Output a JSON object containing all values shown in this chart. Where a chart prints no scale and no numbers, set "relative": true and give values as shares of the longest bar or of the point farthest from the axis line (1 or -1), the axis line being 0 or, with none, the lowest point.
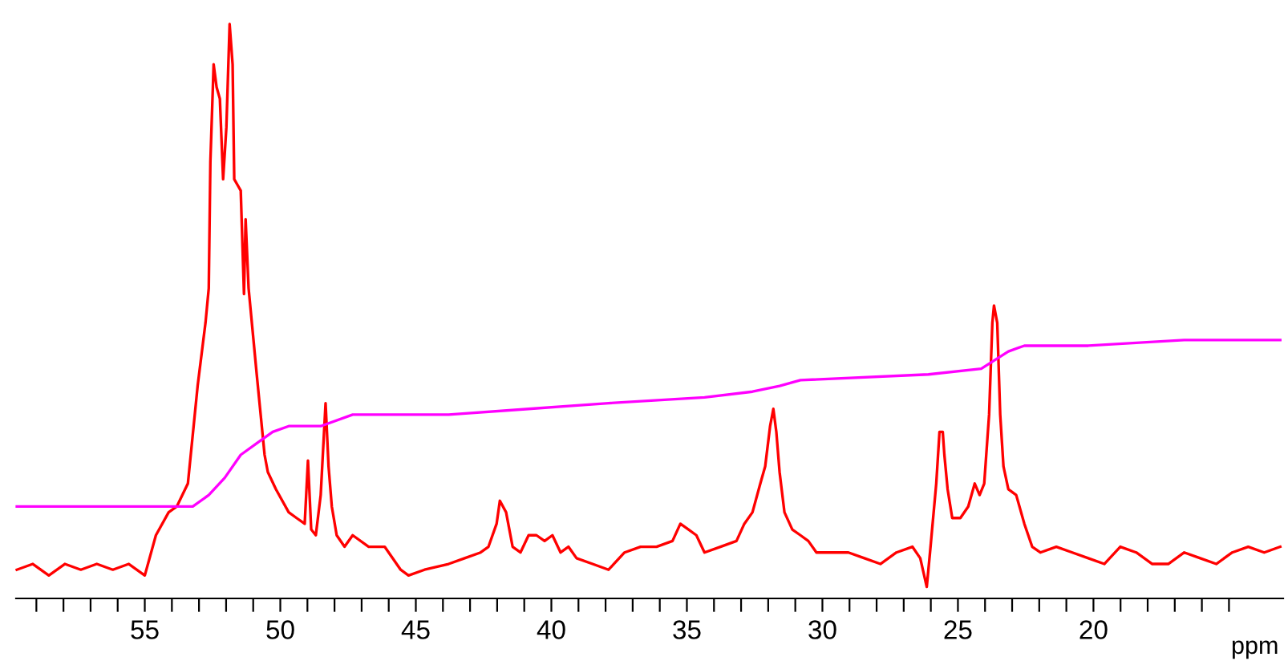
{
  "chart_data": {
    "type": "line",
    "xlabel": "ppm",
    "relative": true,
    "grid": false,
    "marker": "none",
    "line_style": "solid",
    "xlim": [
      59.75,
      13.0
    ],
    "xticks": [
      {
        "value": 59,
        "label": null
      },
      {
        "value": 58,
        "label": null
      },
      {
        "value": 57,
        "label": null
      },
      {
        "value": 56,
        "label": null
      },
      55,
      {
        "value": 54,
        "label": null
      },
      {
        "value": 53,
        "label": null
      },
      {
        "value": 52,
        "label": null
      },
      {
        "value": 51,
        "label": null
      },
      50,
      {
        "value": 49,
        "label": null
      },
      {
        "value": 48,
        "label": null
      },
      {
        "value": 47,
        "label": null
      },
      {
        "value": 46,
        "label": null
      },
      45,
      {
        "value": 44,
        "label": null
      },
      {
        "value": 43,
        "label": null
      },
      {
        "value": 42,
        "label": null
      },
      {
        "value": 41,
        "label": null
      },
      40,
      {
        "value": 39,
        "label": null
      },
      {
        "value": 38,
        "label": null
      },
      {
        "value": 37,
        "label": null
      },
      {
        "value": 36,
        "label": null
      },
      35,
      {
        "value": 34,
        "label": null
      },
      {
        "value": 33,
        "label": null
      },
      {
        "value": 32,
        "label": null
      },
      {
        "value": 31,
        "label": null
      },
      30,
      {
        "value": 29,
        "label": null
      },
      {
        "value": 28,
        "label": null
      },
      {
        "value": 27,
        "label": null
      },
      {
        "value": 26,
        "label": null
      },
      25,
      {
        "value": 24,
        "label": null
      },
      {
        "value": 23,
        "label": null
      },
      {
        "value": 22,
        "label": null
      },
      {
        "value": 21,
        "label": null
      },
      20,
      {
        "value": 19,
        "label": null
      },
      {
        "value": 18,
        "label": null
      },
      {
        "value": 17,
        "label": null
      },
      {
        "value": 16,
        "label": null
      },
      {
        "value": 15,
        "label": null
      }
    ],
    "series": [
      {
        "color": "#ff0000",
        "x": [
          59.72,
          59.13,
          58.54,
          57.95,
          57.36,
          56.77,
          56.18,
          55.59,
          55.0,
          54.59,
          54.12,
          53.82,
          53.41,
          53.05,
          52.76,
          52.64,
          52.58,
          52.46,
          52.35,
          52.23,
          52.11,
          51.99,
          51.87,
          51.76,
          51.7,
          51.58,
          51.46,
          51.34,
          51.28,
          51.17,
          50.87,
          50.58,
          50.46,
          50.16,
          49.69,
          49.4,
          49.1,
          48.98,
          48.86,
          48.69,
          48.51,
          48.33,
          48.22,
          48.1,
          47.92,
          47.63,
          47.33,
          46.74,
          46.15,
          45.56,
          45.27,
          44.68,
          43.79,
          43.2,
          42.61,
          42.32,
          42.02,
          41.9,
          41.67,
          41.43,
          41.14,
          40.84,
          40.55,
          40.25,
          39.96,
          39.66,
          39.37,
          39.07,
          38.48,
          37.89,
          37.3,
          36.71,
          36.12,
          35.53,
          35.24,
          34.94,
          34.65,
          34.35,
          33.76,
          33.17,
          32.88,
          32.58,
          32.29,
          32.11,
          31.93,
          31.81,
          31.7,
          31.58,
          31.4,
          31.11,
          30.81,
          30.52,
          30.22,
          29.63,
          29.04,
          28.45,
          27.86,
          27.27,
          26.68,
          26.39,
          26.15,
          26.03,
          25.8,
          25.68,
          25.56,
          25.5,
          25.38,
          25.21,
          24.91,
          24.62,
          24.38,
          24.2,
          24.03,
          23.85,
          23.73,
          23.67,
          23.55,
          23.44,
          23.32,
          23.14,
          22.85,
          22.55,
          22.26,
          21.96,
          21.37,
          20.78,
          20.19,
          19.6,
          19.01,
          18.42,
          17.83,
          17.24,
          16.65,
          16.06,
          15.47,
          14.88,
          14.29,
          13.7,
          13.11
        ],
        "values": [
          0.05,
          0.06,
          0.04,
          0.06,
          0.05,
          0.06,
          0.05,
          0.06,
          0.04,
          0.11,
          0.15,
          0.16,
          0.2,
          0.37,
          0.48,
          0.54,
          0.76,
          0.93,
          0.89,
          0.87,
          0.73,
          0.82,
          1.0,
          0.93,
          0.73,
          0.72,
          0.71,
          0.53,
          0.66,
          0.54,
          0.39,
          0.25,
          0.22,
          0.19,
          0.15,
          0.14,
          0.13,
          0.24,
          0.12,
          0.11,
          0.18,
          0.34,
          0.23,
          0.16,
          0.11,
          0.09,
          0.11,
          0.09,
          0.09,
          0.05,
          0.04,
          0.05,
          0.06,
          0.07,
          0.08,
          0.09,
          0.13,
          0.17,
          0.15,
          0.09,
          0.08,
          0.11,
          0.11,
          0.1,
          0.11,
          0.08,
          0.09,
          0.07,
          0.06,
          0.05,
          0.08,
          0.09,
          0.09,
          0.1,
          0.13,
          0.12,
          0.11,
          0.08,
          0.09,
          0.1,
          0.13,
          0.15,
          0.2,
          0.23,
          0.3,
          0.33,
          0.29,
          0.22,
          0.15,
          0.12,
          0.11,
          0.1,
          0.08,
          0.08,
          0.08,
          0.07,
          0.06,
          0.08,
          0.09,
          0.07,
          0.02,
          0.08,
          0.2,
          0.29,
          0.29,
          0.25,
          0.19,
          0.14,
          0.14,
          0.16,
          0.2,
          0.18,
          0.2,
          0.32,
          0.48,
          0.51,
          0.48,
          0.32,
          0.23,
          0.19,
          0.18,
          0.13,
          0.09,
          0.08,
          0.09,
          0.08,
          0.07,
          0.06,
          0.09,
          0.08,
          0.06,
          0.06,
          0.08,
          0.07,
          0.06,
          0.08,
          0.09,
          0.08,
          0.09
        ]
      },
      {
        "color": "#ff00ff",
        "x": [
          59.72,
          53.82,
          53.23,
          52.64,
          52.05,
          51.46,
          50.87,
          50.28,
          49.69,
          48.51,
          47.33,
          43.79,
          40.84,
          37.89,
          34.35,
          32.58,
          31.58,
          30.81,
          26.09,
          24.14,
          23.14,
          22.55,
          20.19,
          16.65,
          13.11
        ],
        "values": [
          0.16,
          0.16,
          0.16,
          0.18,
          0.21,
          0.25,
          0.27,
          0.29,
          0.3,
          0.3,
          0.32,
          0.32,
          0.33,
          0.34,
          0.35,
          0.36,
          0.37,
          0.38,
          0.39,
          0.4,
          0.43,
          0.44,
          0.44,
          0.45,
          0.45
        ]
      }
    ]
  }
}
